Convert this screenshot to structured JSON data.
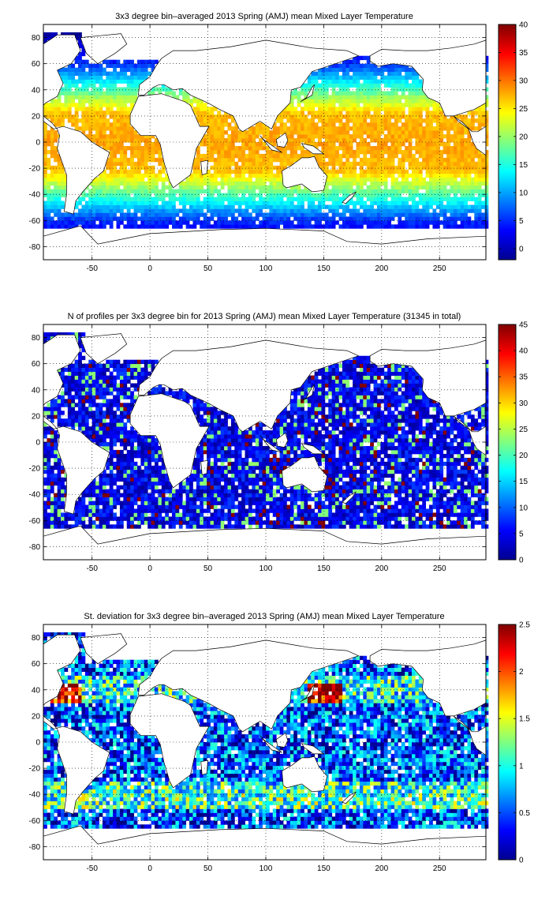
{
  "chart_data": [
    {
      "type": "heatmap",
      "title": "3x3 degree bin–averaged 2013 Spring (AMJ) mean Mixed Layer Temperature",
      "xlim": [
        -92,
        290
      ],
      "ylim": [
        -90,
        90
      ],
      "x_ticks": [
        "-50",
        "0",
        "50",
        "100",
        "150",
        "200",
        "250"
      ],
      "y_ticks": [
        "80",
        "60",
        "40",
        "20",
        "0",
        "-20",
        "-40",
        "-60",
        "-80"
      ],
      "x_tick_values": [
        -50,
        0,
        50,
        100,
        150,
        200,
        250
      ],
      "y_tick_values": [
        80,
        60,
        40,
        20,
        0,
        -20,
        -40,
        -60,
        -80
      ],
      "colorbar": {
        "min": -2,
        "max": 40,
        "ticks": [
          "40",
          "35",
          "30",
          "25",
          "20",
          "15",
          "10",
          "5",
          "0"
        ],
        "tick_values": [
          40,
          35,
          30,
          25,
          20,
          15,
          10,
          5,
          0
        ],
        "colormap": "jet"
      },
      "grid": "dotted",
      "field": "temperature"
    },
    {
      "type": "heatmap",
      "title": "N of profiles per 3x3 degree bin for 2013 Spring (AMJ) mean Mixed Layer Temperature  (31345 in total)",
      "xlim": [
        -92,
        290
      ],
      "ylim": [
        -90,
        90
      ],
      "x_ticks": [
        "-50",
        "0",
        "50",
        "100",
        "150",
        "200",
        "250"
      ],
      "y_ticks": [
        "80",
        "60",
        "40",
        "20",
        "0",
        "-20",
        "-40",
        "-60",
        "-80"
      ],
      "x_tick_values": [
        -50,
        0,
        50,
        100,
        150,
        200,
        250
      ],
      "y_tick_values": [
        80,
        60,
        40,
        20,
        0,
        -20,
        -40,
        -60,
        -80
      ],
      "colorbar": {
        "min": 0,
        "max": 45,
        "ticks": [
          "45",
          "40",
          "35",
          "30",
          "25",
          "20",
          "15",
          "10",
          "5",
          "0"
        ],
        "tick_values": [
          45,
          40,
          35,
          30,
          25,
          20,
          15,
          10,
          5,
          0
        ],
        "colormap": "jet"
      },
      "grid": "dotted",
      "field": "count"
    },
    {
      "type": "heatmap",
      "title": "St. deviation for 3x3 degree bin–averaged 2013 Spring (AMJ) mean Mixed Layer Temperature",
      "xlim": [
        -92,
        290
      ],
      "ylim": [
        -90,
        90
      ],
      "x_ticks": [
        "-50",
        "0",
        "50",
        "100",
        "150",
        "200",
        "250"
      ],
      "y_ticks": [
        "80",
        "60",
        "40",
        "20",
        "0",
        "-20",
        "-40",
        "-60",
        "-80"
      ],
      "x_tick_values": [
        -50,
        0,
        50,
        100,
        150,
        200,
        250
      ],
      "y_tick_values": [
        80,
        60,
        40,
        20,
        0,
        -20,
        -40,
        -60,
        -80
      ],
      "colorbar": {
        "min": 0,
        "max": 2.5,
        "ticks": [
          "2.5",
          "2",
          "1.5",
          "1",
          "0.5",
          "0"
        ],
        "tick_values": [
          2.5,
          2,
          1.5,
          1,
          0.5,
          0
        ],
        "colormap": "jet"
      },
      "grid": "dotted",
      "field": "stddev"
    }
  ]
}
